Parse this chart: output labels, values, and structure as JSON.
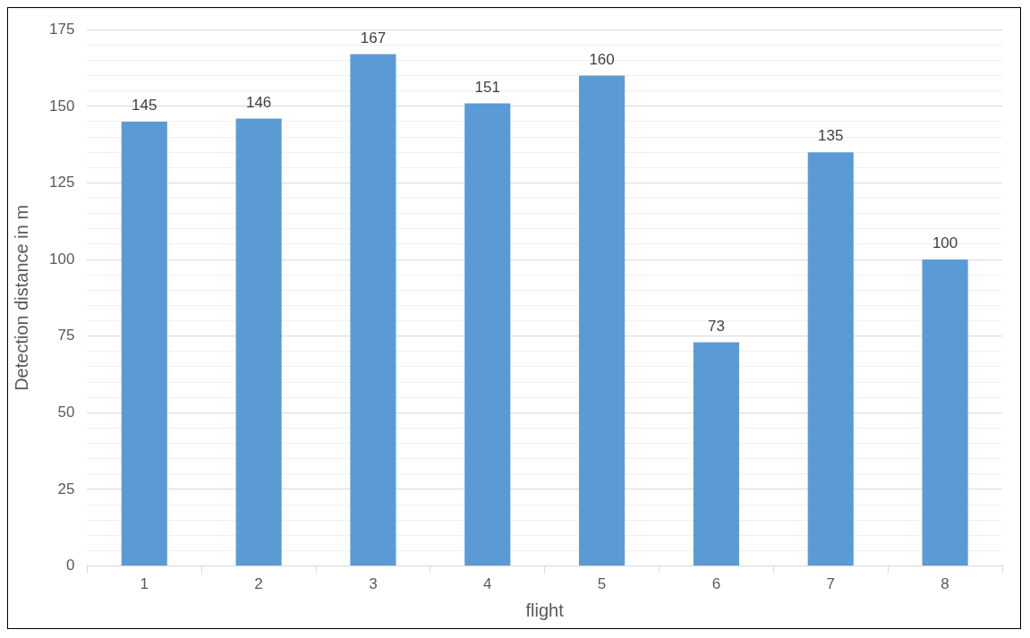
{
  "chart_data": {
    "type": "bar",
    "xlabel": "flight",
    "ylabel": "Detection distance in m",
    "categories": [
      "1",
      "2",
      "3",
      "4",
      "5",
      "6",
      "7",
      "8"
    ],
    "values": [
      145,
      146,
      167,
      151,
      160,
      73,
      135,
      100
    ],
    "color": "#5b9bd5",
    "ylim": [
      0,
      175
    ],
    "yticks": [
      0,
      {
        "value": 5,
        "label": null
      },
      {
        "value": 10,
        "label": null
      },
      {
        "value": 15,
        "label": null
      },
      {
        "value": 20,
        "label": null
      },
      25,
      {
        "value": 30,
        "label": null
      },
      {
        "value": 35,
        "label": null
      },
      {
        "value": 40,
        "label": null
      },
      {
        "value": 45,
        "label": null
      },
      50,
      {
        "value": 55,
        "label": null
      },
      {
        "value": 60,
        "label": null
      },
      {
        "value": 65,
        "label": null
      },
      {
        "value": 70,
        "label": null
      },
      75,
      {
        "value": 80,
        "label": null
      },
      {
        "value": 85,
        "label": null
      },
      {
        "value": 90,
        "label": null
      },
      {
        "value": 95,
        "label": null
      },
      100,
      {
        "value": 105,
        "label": null
      },
      {
        "value": 110,
        "label": null
      },
      {
        "value": 115,
        "label": null
      },
      {
        "value": 120,
        "label": null
      },
      125,
      {
        "value": 130,
        "label": null
      },
      {
        "value": 135,
        "label": null
      },
      {
        "value": 140,
        "label": null
      },
      {
        "value": 145,
        "label": null
      },
      150,
      {
        "value": 155,
        "label": null
      },
      {
        "value": 160,
        "label": null
      },
      {
        "value": 165,
        "label": null
      },
      {
        "value": 170,
        "label": null
      },
      175
    ],
    "grid": "y",
    "data_labels": true
  }
}
